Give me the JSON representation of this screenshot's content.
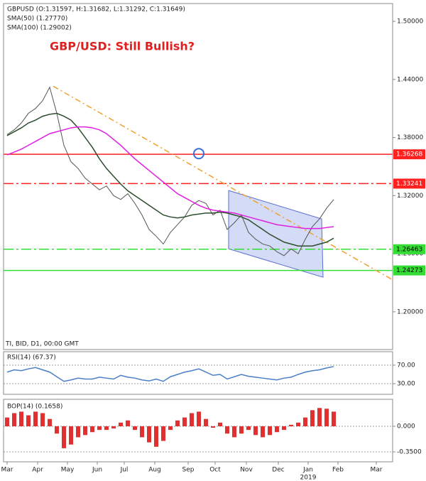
{
  "chart_data": [
    {
      "type": "line",
      "header": [
        "GBPUSD (O:1.31597, H:1.31682, L:1.31292, C:1.31649)",
        "SMA(50) (1.27770)",
        "SMA(100) (1.29002)"
      ],
      "title": "GBP/USD: Still Bullish?",
      "footer": "TI, BID, D1, 00:00 GMT",
      "x": [
        0,
        1,
        2,
        3,
        4,
        5,
        6,
        7,
        8,
        9,
        10,
        11,
        12,
        13,
        14,
        15,
        16,
        17,
        18,
        19,
        20,
        21,
        22,
        23,
        24,
        25,
        26,
        27,
        28,
        29,
        30,
        31,
        32,
        33,
        34,
        35,
        36,
        37,
        38,
        39,
        40,
        41,
        42,
        43,
        44,
        45,
        46
      ],
      "xlim": [
        -0.5,
        54.3
      ],
      "ylim": [
        1.161,
        1.5184
      ],
      "yticks": [
        {
          "value": 1.2,
          "label": "1.20000"
        },
        {
          "value": 1.26,
          "label": "1.26000"
        },
        {
          "value": 1.32,
          "label": "1.32000"
        },
        {
          "value": 1.38,
          "label": "1.38000"
        },
        {
          "value": 1.44,
          "label": "1.44000"
        },
        {
          "value": 1.5,
          "label": "1.50000"
        }
      ],
      "series": [
        {
          "color": "#555555",
          "values": [
            1.383,
            1.388,
            1.395,
            1.405,
            1.41,
            1.418,
            1.432,
            1.405,
            1.372,
            1.355,
            1.348,
            1.338,
            1.332,
            1.326,
            1.33,
            1.32,
            1.316,
            1.322,
            1.312,
            1.3,
            1.285,
            1.278,
            1.27,
            1.282,
            1.29,
            1.298,
            1.31,
            1.315,
            1.312,
            1.3,
            1.305,
            1.285,
            1.292,
            1.3,
            1.282,
            1.275,
            1.27,
            1.268,
            1.262,
            1.258,
            1.265,
            1.26,
            1.275,
            1.288,
            1.296,
            1.307,
            1.316
          ]
        },
        {
          "color": "#2e4d2e",
          "values": [
            1.382,
            1.386,
            1.39,
            1.395,
            1.398,
            1.402,
            1.404,
            1.405,
            1.402,
            1.398,
            1.39,
            1.38,
            1.37,
            1.358,
            1.348,
            1.34,
            1.332,
            1.325,
            1.32,
            1.315,
            1.31,
            1.305,
            1.3,
            1.298,
            1.297,
            1.298,
            1.3,
            1.301,
            1.302,
            1.302,
            1.303,
            1.302,
            1.3,
            1.298,
            1.295,
            1.29,
            1.285,
            1.28,
            1.276,
            1.272,
            1.27,
            1.268,
            1.268,
            1.268,
            1.27,
            1.272,
            1.276
          ]
        },
        {
          "color": "#e020e0",
          "values": [
            1.362,
            1.365,
            1.368,
            1.372,
            1.376,
            1.38,
            1.384,
            1.386,
            1.388,
            1.39,
            1.391,
            1.391,
            1.39,
            1.388,
            1.384,
            1.378,
            1.372,
            1.365,
            1.358,
            1.352,
            1.346,
            1.34,
            1.334,
            1.328,
            1.322,
            1.318,
            1.314,
            1.31,
            1.307,
            1.305,
            1.304,
            1.303,
            1.302,
            1.3,
            1.298,
            1.296,
            1.294,
            1.292,
            1.29,
            1.289,
            1.288,
            1.287,
            1.286,
            1.286,
            1.286,
            1.287,
            1.288
          ]
        }
      ],
      "levels": [
        {
          "value": 1.36268,
          "color": "#ff2020",
          "text_color": "#ffffff",
          "dash": "none"
        },
        {
          "value": 1.33241,
          "color": "#ff2020",
          "text_color": "#ffffff",
          "dash": "14 4 3 4"
        },
        {
          "value": 1.26463,
          "color": "#33dd33",
          "text_color": "#000000",
          "dash": "14 4 3 4"
        },
        {
          "value": 1.24273,
          "color": "#33dd33",
          "text_color": "#000000",
          "dash": "none"
        }
      ],
      "trendline": {
        "color": "#f0a030",
        "x": [
          6.5,
          54.3
        ],
        "y": [
          1.433,
          1.233
        ]
      },
      "channel": {
        "color": "#9fb0ea",
        "x": [
          31.2,
          44.3,
          44.5,
          31.2
        ],
        "y": [
          1.3253,
          1.2959,
          1.2357,
          1.265
        ]
      },
      "marker": {
        "color": "#3a6fd8",
        "x": 27,
        "y": 1.3634
      }
    },
    {
      "type": "line",
      "title": "RSI(14) (67.37)",
      "x": [
        0,
        1,
        2,
        3,
        4,
        5,
        6,
        7,
        8,
        9,
        10,
        11,
        12,
        13,
        14,
        15,
        16,
        17,
        18,
        19,
        20,
        21,
        22,
        23,
        24,
        25,
        26,
        27,
        28,
        29,
        30,
        31,
        32,
        33,
        34,
        35,
        36,
        37,
        38,
        39,
        40,
        41,
        42,
        43,
        44,
        45,
        46
      ],
      "xlim": [
        -0.5,
        54.3
      ],
      "ylim": [
        6.9,
        99.2
      ],
      "yticks": [
        {
          "value": 30,
          "label": "30.00"
        },
        {
          "value": 70,
          "label": "70.00"
        }
      ],
      "grid": true,
      "series": [
        {
          "color": "#4a7fc8",
          "values": [
            55,
            60,
            58,
            62,
            65,
            60,
            55,
            45,
            35,
            38,
            42,
            40,
            40,
            44,
            42,
            40,
            48,
            44,
            42,
            38,
            36,
            40,
            35,
            45,
            50,
            55,
            58,
            62,
            55,
            48,
            50,
            40,
            45,
            50,
            46,
            44,
            42,
            40,
            38,
            42,
            44,
            50,
            55,
            58,
            60,
            64,
            67
          ]
        }
      ]
    },
    {
      "type": "bar",
      "title": "BOP(14) (0.1658)",
      "x": [
        0,
        1,
        2,
        3,
        4,
        5,
        6,
        7,
        8,
        9,
        10,
        11,
        12,
        13,
        14,
        15,
        16,
        17,
        18,
        19,
        20,
        21,
        22,
        23,
        24,
        25,
        26,
        27,
        28,
        29,
        30,
        31,
        32,
        33,
        34,
        35,
        36,
        37,
        38,
        39,
        40,
        41,
        42,
        43,
        44,
        45,
        46
      ],
      "xlim": [
        -0.5,
        54.3
      ],
      "ylim": [
        -0.486,
        0.369
      ],
      "yticks": [
        {
          "value": -0.35,
          "label": "-0.3500"
        },
        {
          "value": 0,
          "label": "0.000"
        }
      ],
      "grid": true,
      "color": "#e03030",
      "values": [
        0.12,
        0.18,
        0.2,
        0.15,
        0.2,
        0.18,
        0.1,
        -0.1,
        -0.3,
        -0.25,
        -0.15,
        -0.12,
        -0.08,
        -0.05,
        -0.05,
        -0.03,
        0.05,
        0.08,
        -0.05,
        -0.15,
        -0.22,
        -0.28,
        -0.2,
        -0.05,
        0.08,
        0.12,
        0.18,
        0.2,
        0.1,
        -0.02,
        0.05,
        -0.1,
        -0.15,
        -0.1,
        -0.05,
        -0.12,
        -0.15,
        -0.12,
        -0.08,
        -0.05,
        0.02,
        0.05,
        0.12,
        0.22,
        0.25,
        0.24,
        0.2
      ],
      "xticks": [
        {
          "value": 0,
          "label": "Mar"
        },
        {
          "value": 4.3,
          "label": "Apr"
        },
        {
          "value": 8.5,
          "label": "May"
        },
        {
          "value": 12.7,
          "label": "Jun"
        },
        {
          "value": 16.5,
          "label": "Jul"
        },
        {
          "value": 20.8,
          "label": "Aug"
        },
        {
          "value": 25.5,
          "label": "Sep"
        },
        {
          "value": 29.3,
          "label": "Oct"
        },
        {
          "value": 33.7,
          "label": "Nov"
        },
        {
          "value": 38.2,
          "label": "Dec"
        },
        {
          "value": 42.4,
          "label": "Jan"
        },
        {
          "value": 46.6,
          "label": "Feb"
        },
        {
          "value": 52,
          "label": "Mar"
        }
      ],
      "year": "2019"
    }
  ]
}
